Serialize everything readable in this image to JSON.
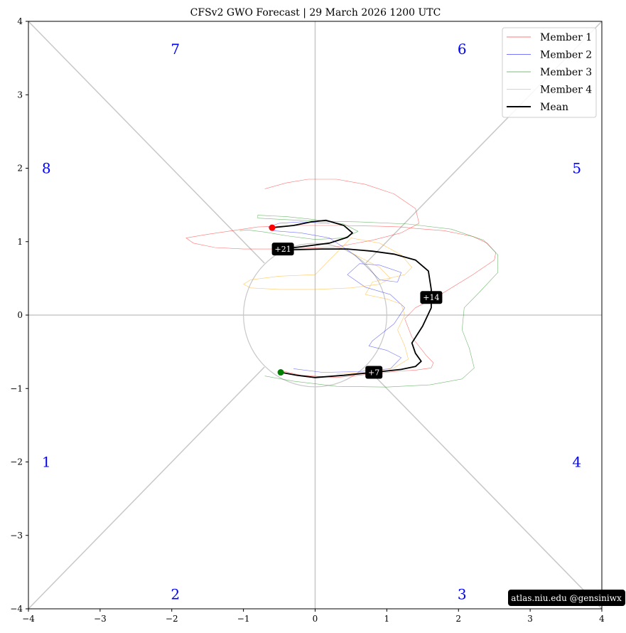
{
  "chart_data": {
    "type": "line",
    "title": "CFSv2 GWO Forecast   |   29  March  2026 1200 UTC",
    "xlim": [
      -4,
      4
    ],
    "ylim": [
      -4,
      4
    ],
    "xticks": [
      "−4",
      "−3",
      "−2",
      "−1",
      "0",
      "1",
      "2",
      "3",
      "4"
    ],
    "yticks": [
      "−4",
      "−3",
      "−2",
      "−1",
      "0",
      "1",
      "2",
      "3",
      "4"
    ],
    "xtick_values": [
      -4,
      -3,
      -2,
      -1,
      0,
      1,
      2,
      3,
      4
    ],
    "ytick_values": [
      -4,
      -3,
      -2,
      -1,
      0,
      1,
      2,
      3,
      4
    ],
    "grid": false,
    "legend_position": "top-right",
    "unit_circle_radius": 1,
    "phase_labels": [
      {
        "label": "1",
        "x": -3.75,
        "y": -2.0
      },
      {
        "label": "2",
        "x": -1.95,
        "y": -3.8
      },
      {
        "label": "3",
        "x": 2.05,
        "y": -3.8
      },
      {
        "label": "4",
        "x": 3.65,
        "y": -2.0
      },
      {
        "label": "5",
        "x": 3.65,
        "y": 2.0
      },
      {
        "label": "6",
        "x": 2.05,
        "y": 3.62
      },
      {
        "label": "7",
        "x": -1.95,
        "y": 3.62
      },
      {
        "label": "8",
        "x": -3.75,
        "y": 2.0
      }
    ],
    "series": [
      {
        "name": "Member 1",
        "color": "#ff0000",
        "width": 0.6,
        "opacity": 0.55,
        "x": [
          -0.5,
          -0.2,
          0.3,
          0.8,
          1.2,
          1.4,
          1.62,
          1.65,
          1.55,
          1.35,
          1.25,
          1.4,
          1.7,
          2.2,
          2.5,
          2.52,
          2.4,
          2.2,
          1.8,
          1.4,
          1.2,
          0.9,
          0.4,
          -0.2,
          -0.8,
          -1.5,
          -1.8,
          -1.7,
          -1.4,
          -1.0,
          -0.4,
          0.3,
          0.8,
          1.2,
          1.45,
          1.4,
          1.1,
          0.7,
          0.3,
          -0.1,
          -0.4,
          -0.7
        ],
        "y": [
          -0.75,
          -0.82,
          -0.85,
          -0.8,
          -0.76,
          -0.75,
          -0.72,
          -0.65,
          -0.55,
          -0.3,
          -0.05,
          0.1,
          0.25,
          0.55,
          0.75,
          0.85,
          0.98,
          1.07,
          1.15,
          1.18,
          1.2,
          1.21,
          1.22,
          1.22,
          1.2,
          1.1,
          1.05,
          0.98,
          0.92,
          0.9,
          0.9,
          0.93,
          1.02,
          1.12,
          1.25,
          1.45,
          1.65,
          1.78,
          1.85,
          1.85,
          1.8,
          1.72
        ]
      },
      {
        "name": "Member 2",
        "color": "#0000ff",
        "width": 0.6,
        "opacity": 0.55,
        "x": [
          -0.3,
          0.1,
          0.6,
          1.05,
          1.2,
          1.0,
          0.75,
          0.8,
          1.1,
          1.25,
          1.05,
          0.7,
          0.45,
          0.62,
          0.9,
          1.2,
          1.15,
          0.9,
          0.55,
          0.2,
          -0.2,
          -0.6,
          -0.65,
          -0.5,
          -0.2,
          0.2
        ],
        "y": [
          -0.73,
          -0.78,
          -0.77,
          -0.73,
          -0.58,
          -0.48,
          -0.42,
          -0.35,
          -0.12,
          0.1,
          0.28,
          0.38,
          0.55,
          0.7,
          0.68,
          0.58,
          0.45,
          0.48,
          0.82,
          1.05,
          1.12,
          1.15,
          1.2,
          1.25,
          1.27,
          1.25
        ]
      },
      {
        "name": "Member 3",
        "color": "#008000",
        "width": 0.6,
        "opacity": 0.55,
        "x": [
          -0.7,
          -0.3,
          0.3,
          1.0,
          1.6,
          2.05,
          2.22,
          2.15,
          2.05,
          2.08,
          2.3,
          2.55,
          2.55,
          2.35,
          1.9,
          1.3,
          0.6,
          0.0,
          -0.4,
          -0.8,
          -0.8,
          -0.4,
          0.0,
          0.4,
          0.6,
          0.4,
          0.0,
          -0.4,
          -0.7,
          -0.95,
          -1.05
        ],
        "y": [
          -0.83,
          -0.9,
          -0.97,
          -0.98,
          -0.95,
          -0.87,
          -0.72,
          -0.45,
          -0.2,
          0.1,
          0.32,
          0.58,
          0.82,
          1.02,
          1.17,
          1.24,
          1.27,
          1.28,
          1.3,
          1.32,
          1.36,
          1.34,
          1.3,
          1.24,
          1.14,
          1.05,
          1.03,
          1.08,
          1.13,
          1.16,
          1.15
        ]
      },
      {
        "name": "Member 4",
        "color": "#ffa500",
        "width": 0.6,
        "opacity": 0.6,
        "x": [
          0.3,
          0.75,
          1.1,
          1.3,
          1.25,
          1.15,
          1.25,
          1.2,
          1.0,
          0.7,
          0.8,
          1.25,
          1.35,
          1.2,
          0.9,
          0.5,
          0.0,
          -0.5,
          -0.9,
          -1.0,
          -0.9,
          -0.5,
          0.0,
          0.5,
          0.9,
          1.05,
          0.9,
          0.5
        ],
        "y": [
          -0.8,
          -0.78,
          -0.72,
          -0.6,
          -0.42,
          -0.2,
          0.0,
          0.15,
          0.22,
          0.28,
          0.45,
          0.55,
          0.65,
          0.82,
          0.98,
          1.05,
          0.55,
          0.53,
          0.48,
          0.42,
          0.37,
          0.35,
          0.35,
          0.37,
          0.42,
          0.5,
          0.65,
          0.85
        ]
      },
      {
        "name": "Mean",
        "color": "#000000",
        "width": 1.8,
        "opacity": 1.0,
        "x": [
          -0.48,
          -0.25,
          0.0,
          0.4,
          0.82,
          1.2,
          1.4,
          1.48,
          1.4,
          1.35,
          1.5,
          1.62,
          1.62,
          1.58,
          1.4,
          1.1,
          0.8,
          0.45,
          0.1,
          -0.3,
          -0.45,
          -0.2,
          0.2,
          0.45,
          0.52,
          0.4,
          0.15,
          -0.05,
          -0.3,
          -0.6
        ],
        "y": [
          -0.78,
          -0.82,
          -0.85,
          -0.82,
          -0.78,
          -0.74,
          -0.7,
          -0.63,
          -0.52,
          -0.38,
          -0.15,
          0.1,
          0.35,
          0.6,
          0.75,
          0.83,
          0.87,
          0.9,
          0.9,
          0.89,
          0.9,
          0.93,
          0.98,
          1.06,
          1.12,
          1.22,
          1.29,
          1.27,
          1.22,
          1.19
        ]
      }
    ],
    "start_marker": {
      "x": -0.48,
      "y": -0.78,
      "color": "#008000"
    },
    "end_marker": {
      "x": -0.6,
      "y": 1.19,
      "color": "#ff0000"
    },
    "lead_labels": [
      {
        "label": "+7",
        "x": 0.82,
        "y": -0.78
      },
      {
        "label": "+14",
        "x": 1.62,
        "y": 0.24
      },
      {
        "label": "+21",
        "x": -0.45,
        "y": 0.9
      }
    ],
    "credit": "atlas.niu.edu  @gensiniwx"
  }
}
